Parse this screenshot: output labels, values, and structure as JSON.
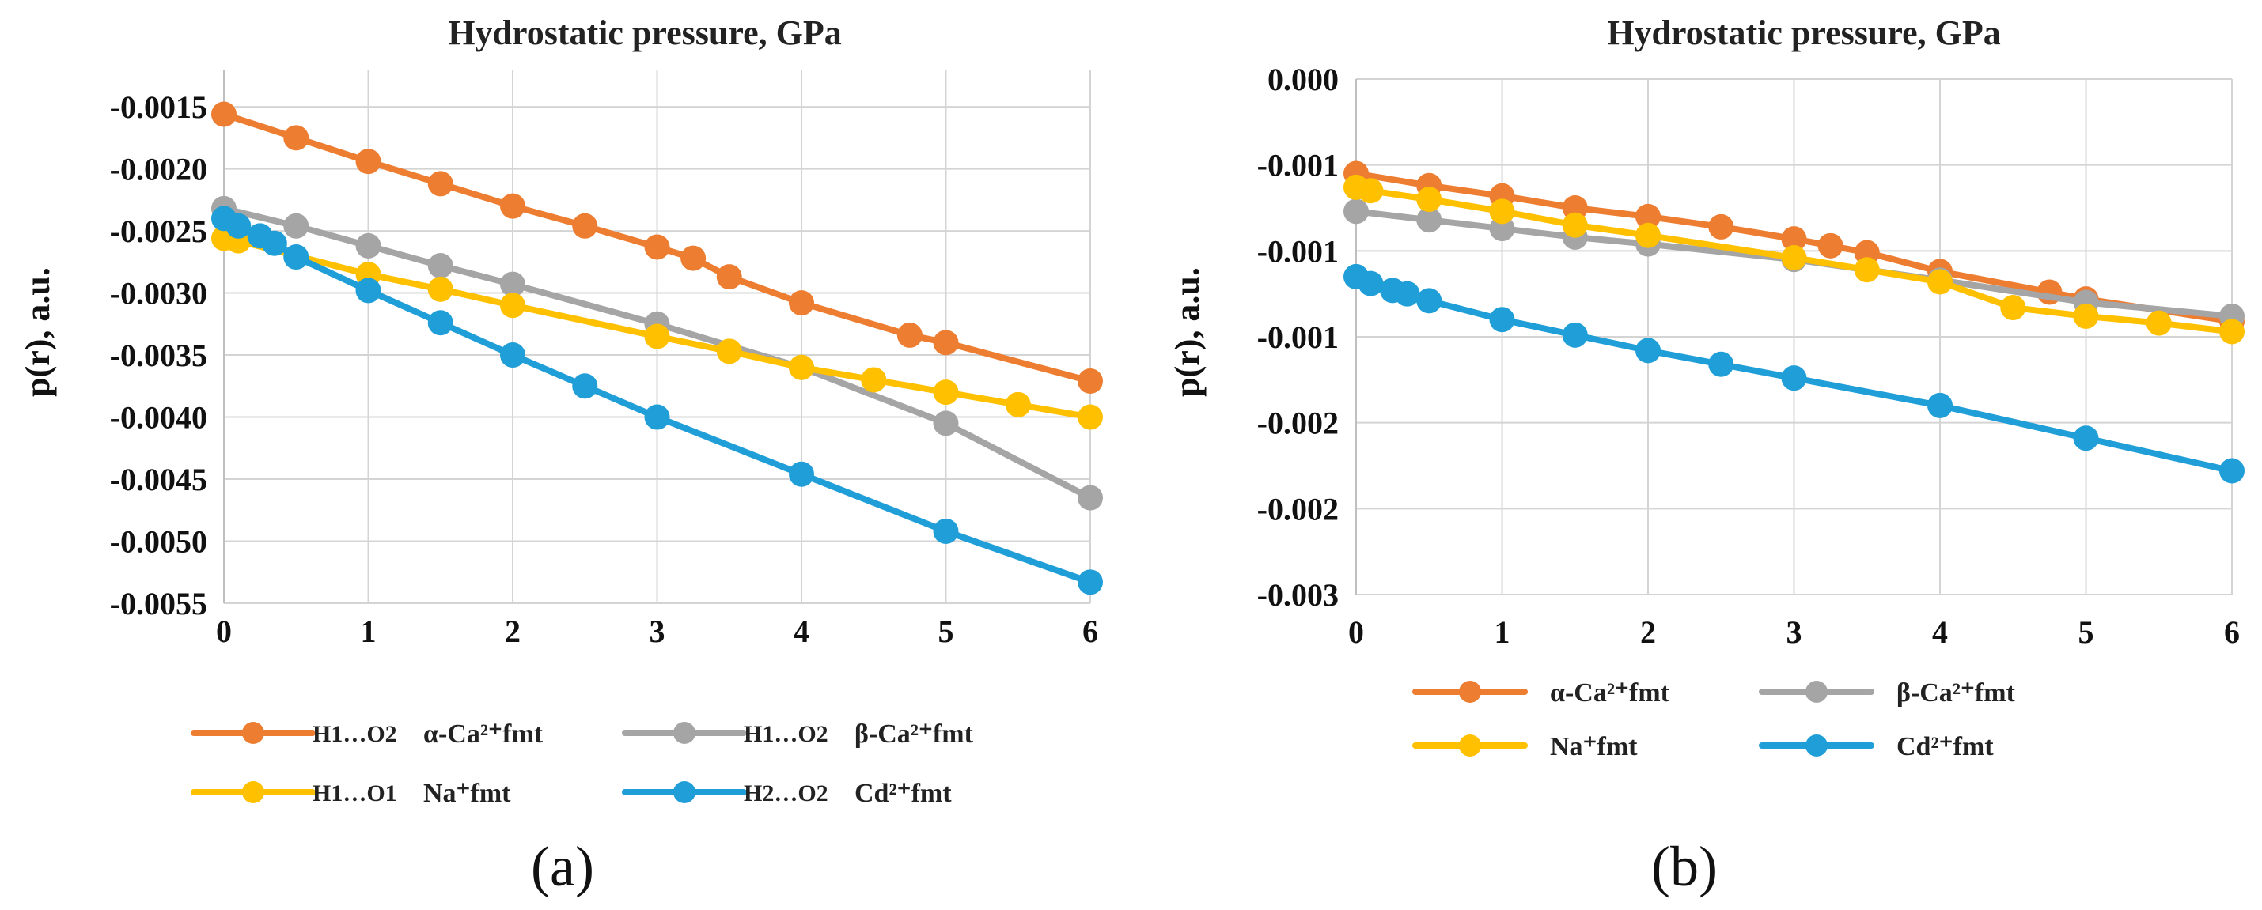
{
  "chart_data": [
    {
      "type": "line",
      "panel_label": "(a)",
      "title": "Hydrostatic pressure, GPa",
      "xlabel": "",
      "ylabel": "p(r), a.u.",
      "xlim": [
        0,
        6
      ],
      "ylim": [
        -0.0055,
        -0.0012
      ],
      "x_ticks": [
        "0",
        "1",
        "2",
        "3",
        "4",
        "5",
        "6"
      ],
      "y_ticks": [
        "-0.0015",
        "-0.0020",
        "-0.0025",
        "-0.0030",
        "-0.0035",
        "-0.0040",
        "-0.0045",
        "-0.0050",
        "-0.0055"
      ],
      "y_tick_values": [
        -0.0015,
        -0.002,
        -0.0025,
        -0.003,
        -0.0035,
        -0.004,
        -0.0045,
        -0.005,
        -0.0055
      ],
      "legend_position": "bottom",
      "series": [
        {
          "name": "α-Ca²⁺fmt",
          "prefix": "H1…O2",
          "color": "#ED7D31",
          "x": [
            0,
            0.5,
            1,
            1.5,
            2,
            2.5,
            3,
            3.25,
            3.5,
            4,
            4.75,
            5,
            6
          ],
          "y": [
            -0.00156,
            -0.00175,
            -0.00194,
            -0.00212,
            -0.0023,
            -0.00246,
            -0.00263,
            -0.00272,
            -0.00287,
            -0.00308,
            -0.00334,
            -0.0034,
            -0.00371
          ]
        },
        {
          "name": "β-Ca²⁺fmt",
          "prefix": "H1…O2",
          "color": "#A5A5A5",
          "x": [
            0,
            0.5,
            1,
            1.5,
            2,
            3,
            4,
            5,
            6
          ],
          "y": [
            -0.00232,
            -0.00246,
            -0.00262,
            -0.00278,
            -0.00293,
            -0.00325,
            -0.0036,
            -0.00405,
            -0.00465
          ]
        },
        {
          "name": "Na⁺fmt",
          "prefix": "H1…O1",
          "color": "#FFC000",
          "x": [
            0,
            0.1,
            1,
            1.5,
            2,
            3,
            3.5,
            4,
            4.5,
            5,
            5.5,
            6
          ],
          "y": [
            -0.00256,
            -0.00258,
            -0.00285,
            -0.00297,
            -0.0031,
            -0.00335,
            -0.00347,
            -0.0036,
            -0.0037,
            -0.0038,
            -0.0039,
            -0.004
          ]
        },
        {
          "name": "Cd²⁺fmt",
          "prefix": "H2…O2",
          "color": "#1F9ED8",
          "x": [
            0,
            0.1,
            0.25,
            0.35,
            0.5,
            1,
            1.5,
            2,
            2.5,
            3,
            4,
            5,
            6
          ],
          "y": [
            -0.0024,
            -0.00246,
            -0.00254,
            -0.0026,
            -0.00271,
            -0.00298,
            -0.00324,
            -0.0035,
            -0.00375,
            -0.004,
            -0.00446,
            -0.00492,
            -0.00533
          ]
        }
      ]
    },
    {
      "type": "line",
      "panel_label": "(b)",
      "title": "Hydrostatic pressure, GPa",
      "xlabel": "",
      "ylabel": "p(r), a.u.",
      "xlim": [
        0,
        6
      ],
      "ylim": [
        -0.003,
        0.0
      ],
      "x_ticks": [
        "0",
        "1",
        "2",
        "3",
        "4",
        "5",
        "6"
      ],
      "y_ticks": [
        "0.000",
        "-0.001",
        "-0.001",
        "-0.001",
        "-0.002",
        "-0.002",
        "-0.003"
      ],
      "y_tick_values": [
        0.0,
        -0.0005,
        -0.001,
        -0.0015,
        -0.002,
        -0.0025,
        -0.003
      ],
      "legend_position": "bottom",
      "series": [
        {
          "name": "α-Ca²⁺fmt",
          "prefix": "",
          "color": "#ED7D31",
          "x": [
            0,
            0.5,
            1,
            1.5,
            2,
            2.5,
            3,
            3.25,
            3.5,
            4,
            4.75,
            5,
            6
          ],
          "y": [
            -0.00055,
            -0.00062,
            -0.00068,
            -0.00075,
            -0.0008,
            -0.00086,
            -0.00093,
            -0.00097,
            -0.00101,
            -0.00112,
            -0.00124,
            -0.00128,
            -0.00141
          ]
        },
        {
          "name": "β-Ca²⁺fmt",
          "prefix": "",
          "color": "#A5A5A5",
          "x": [
            0,
            0.5,
            1,
            1.5,
            2,
            3,
            4,
            5,
            6
          ],
          "y": [
            -0.00077,
            -0.00082,
            -0.00087,
            -0.00092,
            -0.00096,
            -0.00105,
            -0.00117,
            -0.0013,
            -0.00138
          ]
        },
        {
          "name": "Na⁺fmt",
          "prefix": "",
          "color": "#FFC000",
          "x": [
            0,
            0.1,
            0.5,
            1,
            1.5,
            2,
            3,
            3.5,
            4,
            4.5,
            5,
            5.5,
            6
          ],
          "y": [
            -0.00063,
            -0.00065,
            -0.0007,
            -0.00077,
            -0.00085,
            -0.00091,
            -0.00104,
            -0.00111,
            -0.00118,
            -0.00133,
            -0.00138,
            -0.00142,
            -0.00147
          ]
        },
        {
          "name": "Cd²⁺fmt",
          "prefix": "",
          "color": "#1F9ED8",
          "x": [
            0,
            0.1,
            0.25,
            0.35,
            0.5,
            1,
            1.5,
            2,
            2.5,
            3,
            4,
            5,
            6
          ],
          "y": [
            -0.00115,
            -0.00119,
            -0.00123,
            -0.00125,
            -0.00129,
            -0.0014,
            -0.00149,
            -0.00158,
            -0.00166,
            -0.00174,
            -0.0019,
            -0.00209,
            -0.00228
          ]
        }
      ]
    }
  ]
}
